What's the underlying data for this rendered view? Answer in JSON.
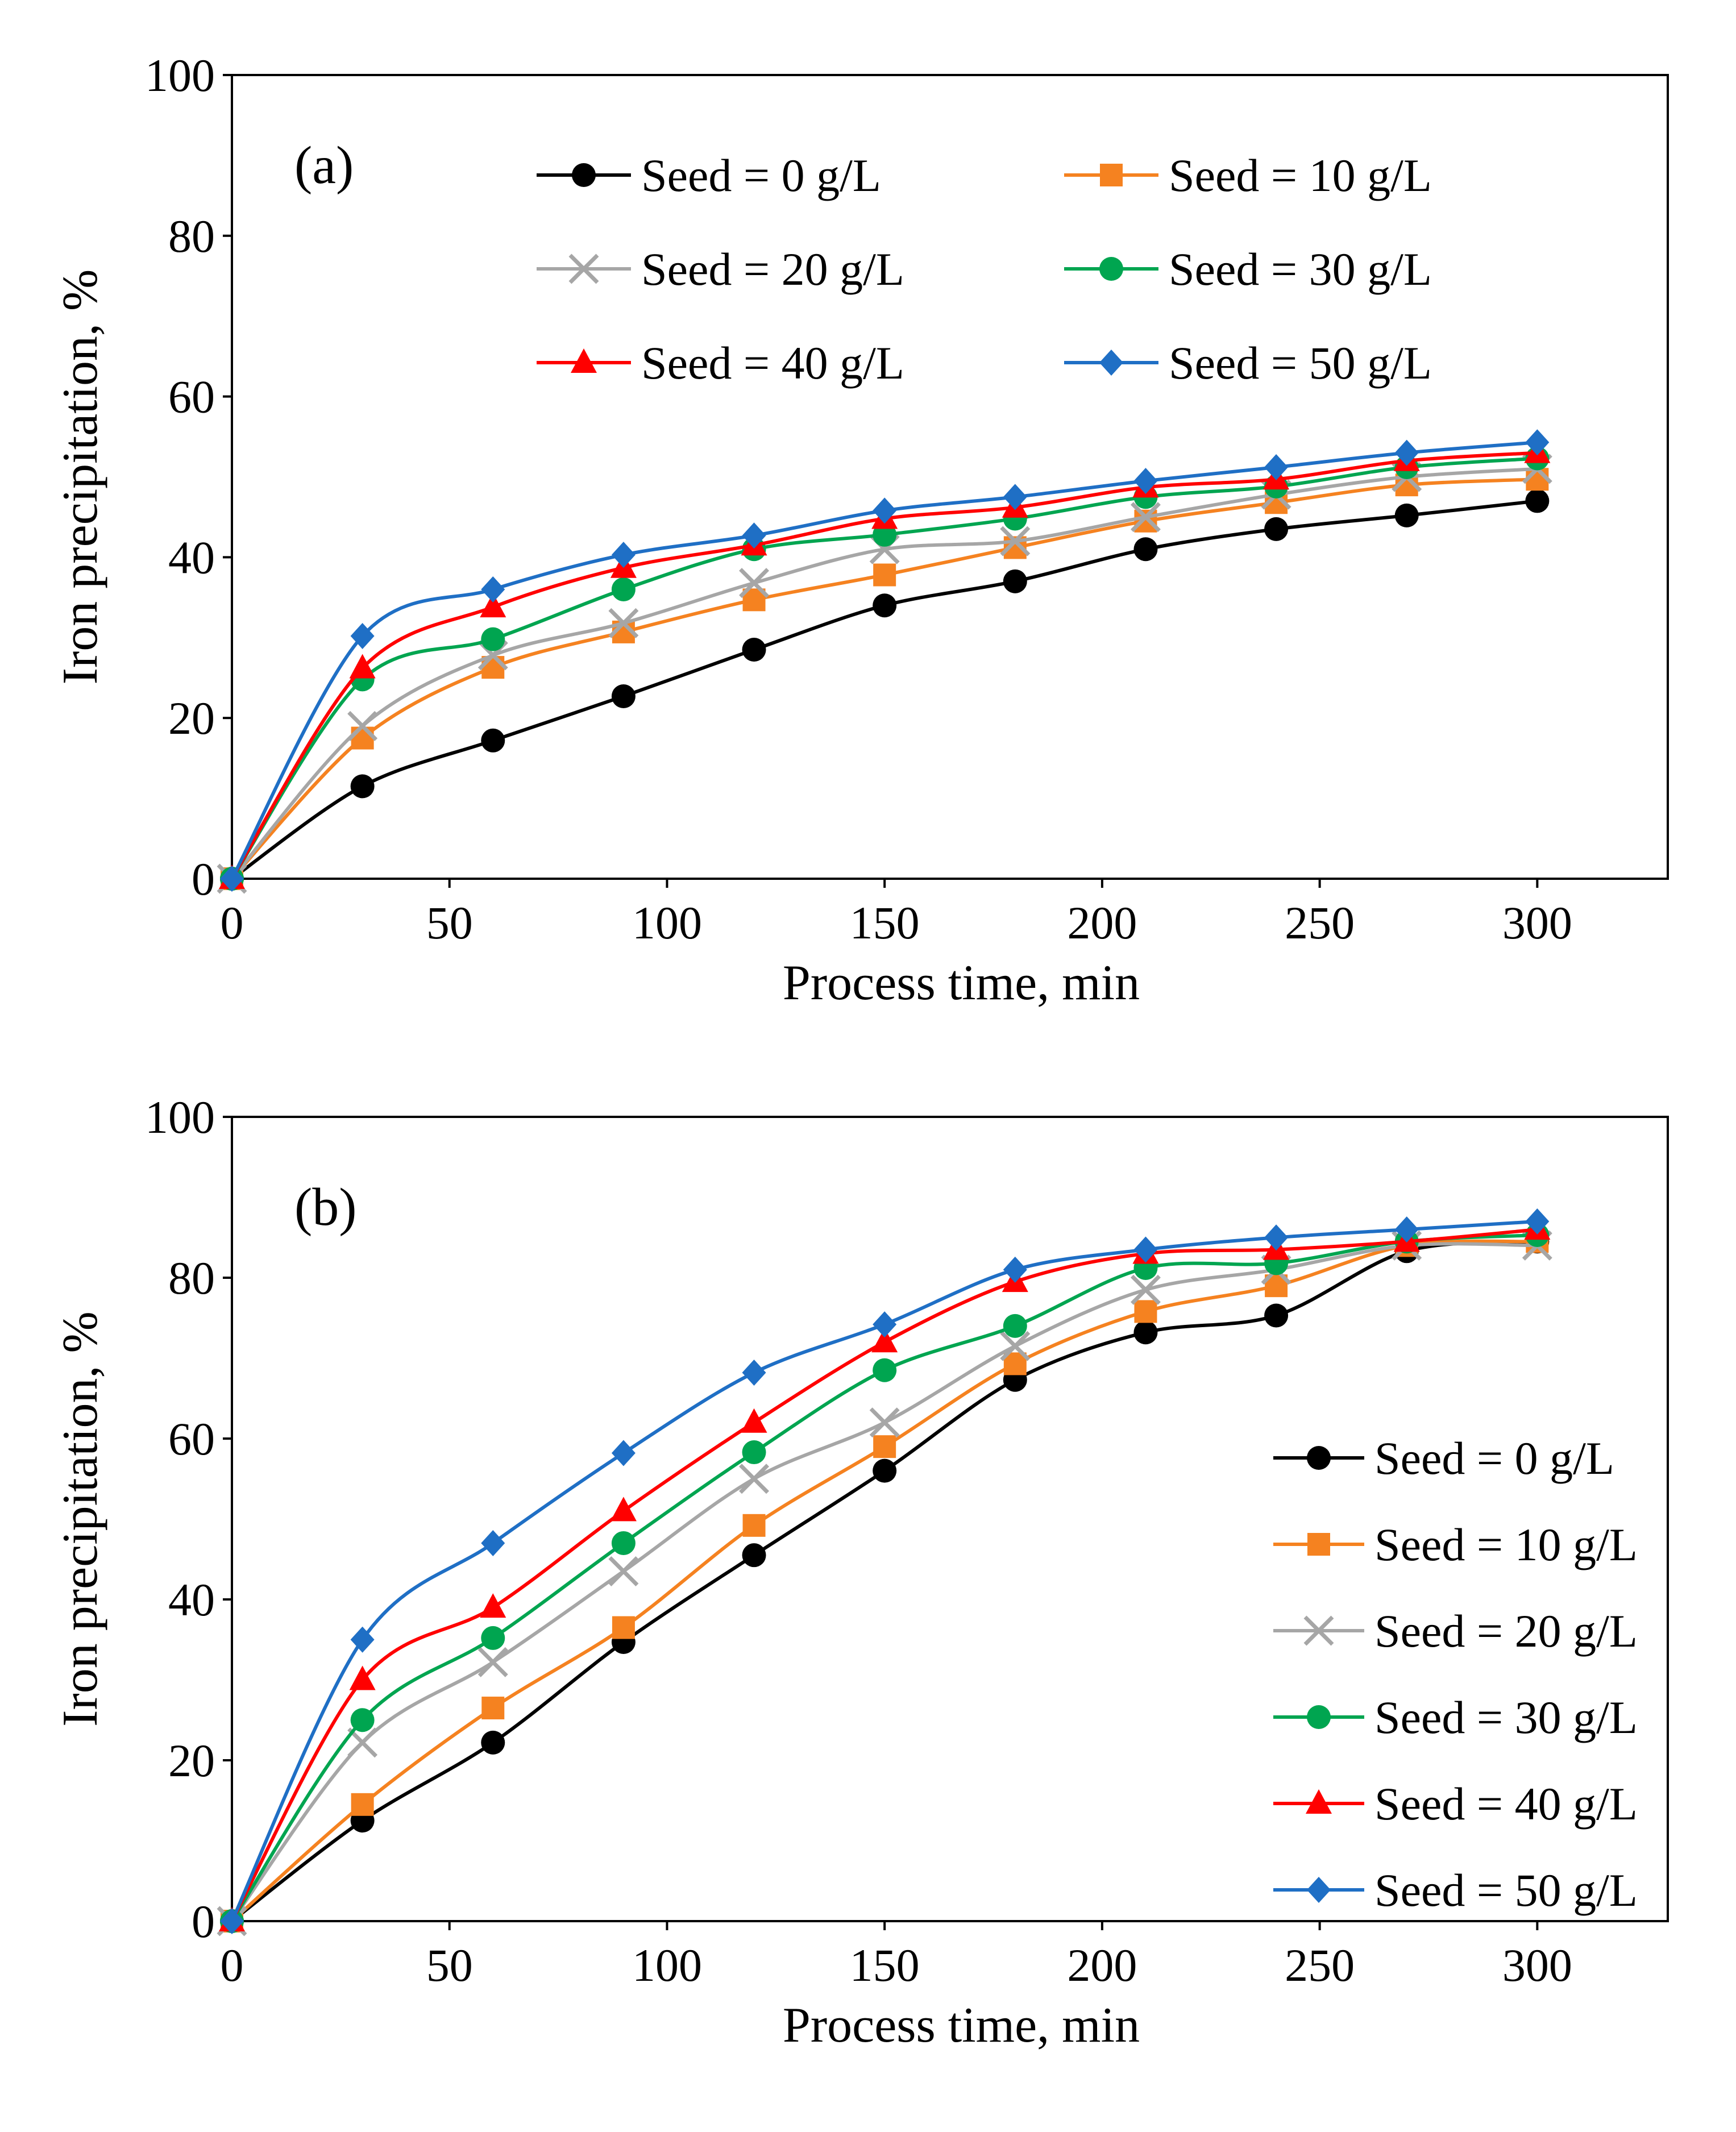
{
  "chart_data": [
    {
      "type": "line",
      "panel_label": "(a)",
      "xlabel": "Process time, min",
      "ylabel": "Iron precipitation, %",
      "xlim": [
        0,
        330
      ],
      "ylim": [
        0,
        100
      ],
      "xticks": [
        "0",
        "50",
        "100",
        "150",
        "200",
        "250",
        "300"
      ],
      "yticks": [
        "0",
        "20",
        "40",
        "60",
        "80",
        "100"
      ],
      "grid": false,
      "legend_position": "top",
      "x": [
        0,
        30,
        60,
        90,
        120,
        150,
        180,
        210,
        240,
        270,
        300
      ],
      "series": [
        {
          "name": "Seed = 0 g/L",
          "color": "#000000",
          "marker": "circle",
          "values": [
            0,
            11.5,
            17.2,
            22.7,
            28.5,
            34.0,
            37.0,
            41.0,
            43.5,
            45.2,
            47.0
          ]
        },
        {
          "name": "Seed = 10 g/L",
          "color": "#F58220",
          "marker": "square",
          "values": [
            0,
            17.5,
            26.3,
            30.7,
            34.7,
            37.8,
            41.2,
            44.5,
            46.8,
            49.0,
            49.7
          ]
        },
        {
          "name": "Seed = 20 g/L",
          "color": "#A6A6A6",
          "marker": "x",
          "values": [
            0,
            19.0,
            27.8,
            31.8,
            36.8,
            41.0,
            42.0,
            45.0,
            47.8,
            50.0,
            51.0
          ]
        },
        {
          "name": "Seed = 30 g/L",
          "color": "#00A550",
          "marker": "circle",
          "values": [
            0,
            24.8,
            29.8,
            36.0,
            41.0,
            42.8,
            44.8,
            47.5,
            48.8,
            51.2,
            52.3
          ]
        },
        {
          "name": "Seed = 40 g/L",
          "color": "#FF0000",
          "marker": "triangle",
          "values": [
            0,
            26.2,
            33.8,
            38.7,
            41.5,
            44.8,
            46.2,
            48.7,
            49.7,
            52.0,
            53.0
          ]
        },
        {
          "name": "Seed = 50 g/L",
          "color": "#1F6FC5",
          "marker": "diamond",
          "values": [
            0,
            30.2,
            36.0,
            40.3,
            42.7,
            45.8,
            47.5,
            49.5,
            51.2,
            53.0,
            54.3
          ]
        }
      ]
    },
    {
      "type": "line",
      "panel_label": "(b)",
      "xlabel": "Process time, min",
      "ylabel": "Iron precipitation, %",
      "xlim": [
        0,
        330
      ],
      "ylim": [
        0,
        100
      ],
      "xticks": [
        "0",
        "50",
        "100",
        "150",
        "200",
        "250",
        "300"
      ],
      "yticks": [
        "0",
        "20",
        "40",
        "60",
        "80",
        "100"
      ],
      "grid": false,
      "legend_position": "right",
      "x": [
        0,
        30,
        60,
        90,
        120,
        150,
        180,
        210,
        240,
        270,
        300
      ],
      "series": [
        {
          "name": "Seed = 0 g/L",
          "color": "#000000",
          "marker": "circle",
          "values": [
            0,
            12.5,
            22.2,
            34.7,
            45.5,
            56.0,
            67.3,
            73.2,
            75.3,
            83.3,
            84.5
          ]
        },
        {
          "name": "Seed = 10 g/L",
          "color": "#F58220",
          "marker": "square",
          "values": [
            0,
            14.5,
            26.5,
            36.5,
            49.2,
            59.0,
            69.3,
            75.8,
            79.0,
            84.0,
            84.5
          ]
        },
        {
          "name": "Seed = 20 g/L",
          "color": "#A6A6A6",
          "marker": "x",
          "values": [
            0,
            22.2,
            32.2,
            43.5,
            55.0,
            62.0,
            71.5,
            78.5,
            81.0,
            84.0,
            84.0
          ]
        },
        {
          "name": "Seed = 30 g/L",
          "color": "#00A550",
          "marker": "circle",
          "values": [
            0,
            25.0,
            35.2,
            47.0,
            58.3,
            68.5,
            74.0,
            81.2,
            81.8,
            84.5,
            85.3
          ]
        },
        {
          "name": "Seed = 40 g/L",
          "color": "#FF0000",
          "marker": "triangle",
          "values": [
            0,
            30.0,
            39.0,
            51.0,
            62.0,
            72.0,
            79.5,
            83.0,
            83.5,
            84.5,
            86.0
          ]
        },
        {
          "name": "Seed = 50 g/L",
          "color": "#1F6FC5",
          "marker": "diamond",
          "values": [
            0,
            35.0,
            47.0,
            58.2,
            68.2,
            74.2,
            81.0,
            83.5,
            85.0,
            86.0,
            87.0
          ]
        }
      ]
    }
  ]
}
